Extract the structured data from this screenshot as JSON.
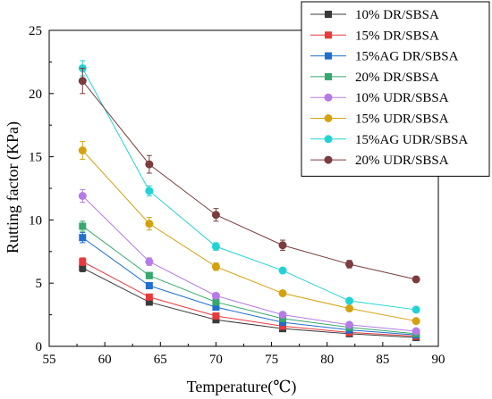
{
  "chart_data": {
    "type": "line",
    "title": "",
    "xlabel": "Temperature(℃)",
    "ylabel": "Rutting factor (KPa)",
    "xlim": [
      55,
      90
    ],
    "ylim": [
      0,
      25
    ],
    "x_ticks": [
      55,
      60,
      65,
      70,
      75,
      80,
      85,
      90
    ],
    "y_ticks": [
      0,
      5,
      10,
      15,
      20,
      25
    ],
    "x": [
      58,
      64,
      70,
      76,
      82,
      88
    ],
    "grid": false,
    "legend_position": "top-right",
    "series": [
      {
        "name": "10% DR/SBSA",
        "marker": "square",
        "color": "#3a3a3a",
        "values": [
          6.2,
          3.5,
          2.1,
          1.4,
          1.0,
          0.7
        ],
        "errors": [
          0.3,
          0.2,
          0.15,
          0.1,
          0.1,
          0.05
        ]
      },
      {
        "name": "15% DR/SBSA",
        "marker": "square",
        "color": "#e8393b",
        "values": [
          6.7,
          3.9,
          2.4,
          1.6,
          1.1,
          0.8
        ],
        "errors": [
          0.3,
          0.2,
          0.15,
          0.1,
          0.1,
          0.05
        ]
      },
      {
        "name": "15%AG DR/SBSA",
        "marker": "square",
        "color": "#1f6fd0",
        "values": [
          8.6,
          4.8,
          3.1,
          1.9,
          1.3,
          0.9
        ],
        "errors": [
          0.4,
          0.25,
          0.2,
          0.1,
          0.1,
          0.05
        ]
      },
      {
        "name": "20% DR/SBSA",
        "marker": "square",
        "color": "#35a86b",
        "values": [
          9.5,
          5.6,
          3.5,
          2.2,
          1.5,
          1.0
        ],
        "errors": [
          0.4,
          0.25,
          0.2,
          0.1,
          0.1,
          0.05
        ]
      },
      {
        "name": "10% UDR/SBSA",
        "marker": "circle",
        "color": "#b57be6",
        "values": [
          11.9,
          6.7,
          4.0,
          2.5,
          1.7,
          1.2
        ],
        "errors": [
          0.5,
          0.3,
          0.2,
          0.15,
          0.1,
          0.05
        ]
      },
      {
        "name": "15% UDR/SBSA",
        "marker": "circle",
        "color": "#d5a20f",
        "values": [
          15.5,
          9.7,
          6.3,
          4.2,
          3.0,
          2.0
        ],
        "errors": [
          0.7,
          0.5,
          0.3,
          0.2,
          0.15,
          0.1
        ]
      },
      {
        "name": "15%AG UDR/SBSA",
        "marker": "circle",
        "color": "#22d3d3",
        "values": [
          22.0,
          12.3,
          7.9,
          6.0,
          3.6,
          2.9
        ],
        "errors": [
          0.6,
          0.4,
          0.3,
          0.2,
          0.2,
          0.1
        ]
      },
      {
        "name": "20% UDR/SBSA",
        "marker": "circle",
        "color": "#7a3c3c",
        "values": [
          21.0,
          14.4,
          10.4,
          8.0,
          6.5,
          5.3
        ],
        "errors": [
          1.0,
          0.7,
          0.5,
          0.4,
          0.3,
          0.2
        ]
      }
    ]
  }
}
